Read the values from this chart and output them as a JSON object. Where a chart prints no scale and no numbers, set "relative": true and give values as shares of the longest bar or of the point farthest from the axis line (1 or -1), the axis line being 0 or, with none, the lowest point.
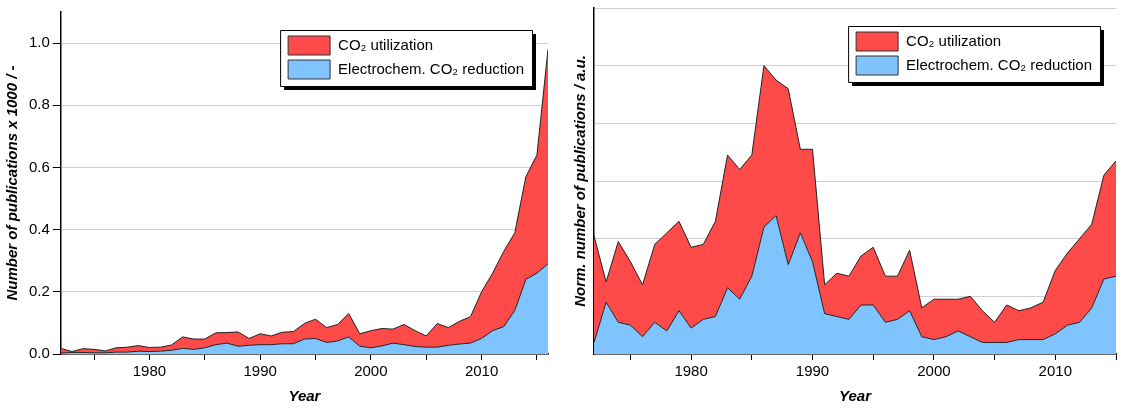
{
  "chart_data": [
    {
      "type": "area",
      "stacked": true,
      "xlabel": "Year",
      "ylabel": "Number of publications x 1000 / -",
      "x": [
        1972,
        1973,
        1974,
        1975,
        1976,
        1977,
        1978,
        1979,
        1980,
        1981,
        1982,
        1983,
        1984,
        1985,
        1986,
        1987,
        1988,
        1989,
        1990,
        1991,
        1992,
        1993,
        1994,
        1995,
        1996,
        1997,
        1998,
        1999,
        2000,
        2001,
        2002,
        2003,
        2004,
        2005,
        2006,
        2007,
        2008,
        2009,
        2010,
        2011,
        2012,
        2013,
        2014,
        2015,
        2016
      ],
      "series": [
        {
          "name": "Electrochem. CO₂ reduction",
          "color": "#80c4ff",
          "values": [
            0.003,
            0.005,
            0.005,
            0.004,
            0.004,
            0.006,
            0.006,
            0.009,
            0.008,
            0.009,
            0.012,
            0.018,
            0.015,
            0.02,
            0.03,
            0.035,
            0.025,
            0.028,
            0.03,
            0.03,
            0.033,
            0.033,
            0.048,
            0.05,
            0.037,
            0.042,
            0.055,
            0.025,
            0.02,
            0.026,
            0.035,
            0.03,
            0.024,
            0.022,
            0.022,
            0.028,
            0.032,
            0.035,
            0.05,
            0.075,
            0.088,
            0.14,
            0.24,
            0.26,
            0.29
          ]
        },
        {
          "name": "CO₂ utilization",
          "color": "#ff4a4a",
          "values": [
            0.015,
            0.003,
            0.012,
            0.011,
            0.006,
            0.014,
            0.016,
            0.018,
            0.013,
            0.013,
            0.017,
            0.037,
            0.033,
            0.028,
            0.038,
            0.034,
            0.046,
            0.022,
            0.035,
            0.028,
            0.037,
            0.039,
            0.05,
            0.062,
            0.048,
            0.053,
            0.075,
            0.04,
            0.055,
            0.056,
            0.045,
            0.065,
            0.051,
            0.036,
            0.076,
            0.057,
            0.073,
            0.085,
            0.15,
            0.185,
            0.242,
            0.25,
            0.33,
            0.38,
            0.69
          ]
        }
      ],
      "xlim": [
        1972,
        2016
      ],
      "xticks": [
        {
          "value": 1975,
          "label": null
        },
        1980,
        {
          "value": 1985,
          "label": null
        },
        1990,
        {
          "value": 1995,
          "label": null
        },
        2000,
        {
          "value": 2005,
          "label": null
        },
        2010,
        {
          "value": 2015,
          "label": null
        }
      ],
      "ylim": [
        0,
        1.1
      ],
      "yticks": [
        {
          "value": 0,
          "label": "0.0"
        },
        {
          "value": 0.2,
          "label": "0.2"
        },
        {
          "value": 0.4,
          "label": "0.4"
        },
        {
          "value": 0.6,
          "label": "0.6"
        },
        {
          "value": 0.8,
          "label": "0.8"
        },
        {
          "value": 1,
          "label": "1.0"
        }
      ],
      "grid": "y",
      "legend": "top right"
    },
    {
      "type": "area",
      "stacked": true,
      "relative": true,
      "xlabel": "Year",
      "ylabel": "Norm. number of publications / a.u.",
      "x": [
        1972,
        1973,
        1974,
        1975,
        1976,
        1977,
        1978,
        1979,
        1980,
        1981,
        1982,
        1983,
        1984,
        1985,
        1986,
        1987,
        1988,
        1989,
        1990,
        1991,
        1992,
        1993,
        1994,
        1995,
        1996,
        1997,
        1998,
        1999,
        2000,
        2001,
        2002,
        2003,
        2004,
        2005,
        2006,
        2007,
        2008,
        2009,
        2010,
        2011,
        2012,
        2013,
        2014,
        2015
      ],
      "series": [
        {
          "name": "Electrochem. CO₂ reduction",
          "color": "#80c4ff",
          "values": [
            0.04,
            0.18,
            0.11,
            0.1,
            0.06,
            0.11,
            0.08,
            0.15,
            0.09,
            0.12,
            0.13,
            0.23,
            0.19,
            0.27,
            0.44,
            0.48,
            0.31,
            0.42,
            0.32,
            0.14,
            0.13,
            0.12,
            0.17,
            0.17,
            0.11,
            0.12,
            0.15,
            0.06,
            0.05,
            0.06,
            0.08,
            0.06,
            0.04,
            0.04,
            0.04,
            0.05,
            0.05,
            0.05,
            0.07,
            0.1,
            0.11,
            0.16,
            0.26,
            0.27
          ]
        },
        {
          "name": "CO₂ utilization",
          "color": "#ff4a4a",
          "values": [
            0.37,
            0.07,
            0.28,
            0.22,
            0.18,
            0.27,
            0.34,
            0.31,
            0.28,
            0.26,
            0.33,
            0.46,
            0.45,
            0.42,
            0.56,
            0.47,
            0.61,
            0.29,
            0.39,
            0.1,
            0.15,
            0.15,
            0.17,
            0.2,
            0.16,
            0.15,
            0.21,
            0.1,
            0.14,
            0.13,
            0.11,
            0.14,
            0.11,
            0.07,
            0.13,
            0.1,
            0.11,
            0.13,
            0.22,
            0.25,
            0.29,
            0.29,
            0.36,
            0.4
          ]
        }
      ],
      "xlim": [
        1972,
        2015
      ],
      "xticks": [
        {
          "value": 1975,
          "label": null
        },
        1980,
        {
          "value": 1985,
          "label": null
        },
        1990,
        {
          "value": 1995,
          "label": null
        },
        2000,
        {
          "value": 2005,
          "label": null
        },
        2010,
        {
          "value": 2015,
          "label": null
        }
      ],
      "grid": "y",
      "legend": "top right"
    }
  ]
}
